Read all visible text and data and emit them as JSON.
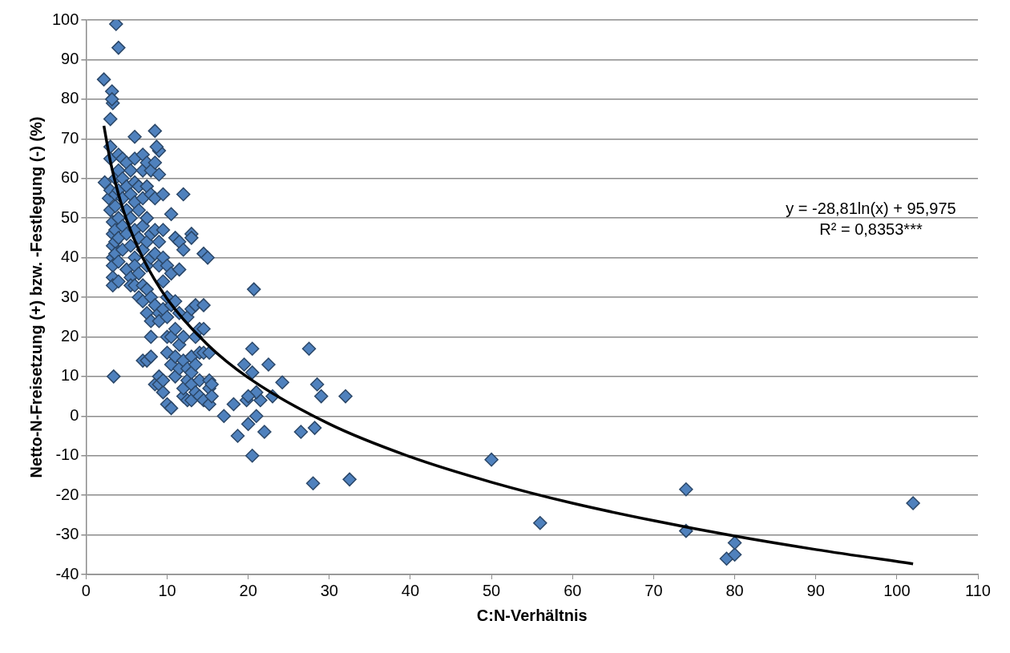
{
  "chart_data": {
    "type": "scatter",
    "xlabel": "C:N-Verhältnis",
    "ylabel": "Netto-N-Freisetzung (+) bzw. -Festlegung (-) (%)",
    "xlim": [
      0,
      110
    ],
    "xticks": [
      0,
      10,
      20,
      30,
      40,
      50,
      60,
      70,
      80,
      90,
      100,
      110
    ],
    "ylim": [
      -40,
      100
    ],
    "yticks": [
      -40,
      -30,
      -20,
      -10,
      0,
      10,
      20,
      30,
      40,
      50,
      60,
      70,
      80,
      90,
      100
    ],
    "grid": "y",
    "legend": false,
    "marker": "diamond",
    "annotations": [
      "y = -28,81ln(x) + 95,975",
      "R² = 0,8353***"
    ],
    "series": [
      {
        "color": "#4f81bd",
        "x": [
          3.7,
          4,
          2.2,
          3.2,
          3.3,
          3,
          3.2,
          8.5,
          6,
          9,
          8.7,
          12,
          10.5,
          13,
          14.5,
          15,
          20.7,
          3.4,
          27.5,
          28.5,
          29,
          32,
          28,
          32.5,
          28.2,
          26.5,
          20.5,
          18.7,
          50,
          56,
          74,
          74,
          79,
          80,
          80,
          102,
          20.5,
          22.5,
          24.2,
          19.5,
          17,
          18.2,
          22,
          20,
          21,
          21.5,
          23,
          20.5,
          21,
          19.8,
          20,
          2.3,
          2.8,
          3,
          3,
          3,
          3,
          3.3,
          3.3,
          3.3,
          3.3,
          3.3,
          3.3,
          3.3,
          3.6,
          3.6,
          3.6,
          3.6,
          3.6,
          3.6,
          4,
          4,
          4,
          4,
          4,
          4,
          4,
          4.5,
          4.5,
          4.5,
          4.5,
          4.5,
          5,
          5,
          5,
          5,
          5,
          5.5,
          5.5,
          5.5,
          5.5,
          5.5,
          5.5,
          6,
          6,
          6,
          6,
          6,
          6,
          6,
          6.5,
          6.5,
          6.5,
          6.5,
          6.5,
          7,
          7,
          7,
          7,
          7,
          7,
          7,
          7,
          7.5,
          7.5,
          7.5,
          7.5,
          7.5,
          7.5,
          7.5,
          7.5,
          8,
          8,
          8,
          8,
          8,
          8,
          8,
          8,
          8.5,
          8.5,
          8.5,
          8.5,
          8.5,
          8.5,
          9,
          9,
          9,
          9,
          9,
          9,
          9,
          9.5,
          9.5,
          9.5,
          9.5,
          9.5,
          9.5,
          9.5,
          10,
          10,
          10,
          10,
          10,
          10,
          10.5,
          10.5,
          10.5,
          10.5,
          10.5,
          11,
          11,
          11,
          11,
          11,
          11.5,
          11.5,
          11.5,
          11.5,
          11.5,
          12,
          12,
          12,
          12,
          12,
          12.5,
          12.5,
          12.5,
          12.5,
          13,
          13,
          13,
          13,
          13,
          13,
          13.5,
          13.5,
          13.5,
          13.5,
          14,
          14,
          14,
          14,
          14.5,
          14.5,
          14.5,
          14.5,
          15.2,
          15.2,
          15.2,
          15.2,
          15.5,
          15.5
        ],
        "values": [
          99,
          93,
          85,
          82,
          79,
          75,
          80,
          72,
          70.5,
          67,
          68,
          56,
          51,
          46,
          41,
          40,
          32,
          10,
          17,
          8,
          5,
          5,
          -17,
          -16,
          -3,
          -4,
          -10,
          -5,
          -11,
          -27,
          -18.5,
          -29,
          -36,
          -35,
          -32,
          -22,
          17,
          13,
          8.5,
          13,
          0,
          3,
          -4,
          -2,
          0,
          4,
          5,
          11,
          6,
          4,
          5,
          59,
          55,
          68,
          65,
          57,
          52,
          49,
          46,
          43,
          40,
          38,
          35,
          33,
          60,
          56,
          53,
          47,
          44,
          41,
          66,
          62,
          57,
          50,
          45,
          39,
          34,
          65,
          60,
          55,
          48,
          42,
          64,
          58,
          52,
          46,
          37,
          62,
          56,
          50,
          43,
          35,
          33,
          65,
          59,
          54,
          47,
          40,
          38,
          33,
          58,
          52,
          45,
          36,
          30,
          66,
          62,
          55,
          48,
          42,
          33,
          29,
          14,
          64,
          58,
          50,
          44,
          38,
          32,
          26,
          14,
          62,
          56,
          46,
          40,
          30,
          24,
          20,
          15,
          64,
          55,
          47,
          41,
          28,
          8,
          61,
          44,
          38,
          26,
          24,
          10,
          8,
          56,
          47,
          40,
          34,
          27,
          6,
          9,
          38,
          30,
          25,
          20,
          16,
          3,
          36,
          28,
          20,
          13,
          2,
          45,
          29,
          22,
          10,
          15,
          44,
          37,
          26,
          18,
          12,
          42,
          20,
          14,
          5,
          7,
          25,
          12,
          4,
          9,
          45,
          27,
          15,
          8,
          4,
          11,
          28,
          20,
          13,
          6,
          22,
          16,
          9,
          5,
          28,
          22,
          16,
          4,
          16,
          9,
          3,
          7,
          8,
          5
        ]
      },
      {
        "type": "line",
        "color": "#000000",
        "marker": "none",
        "x": [
          2.2,
          3,
          4,
          5,
          7,
          10,
          15,
          20,
          30,
          40,
          50,
          60,
          70,
          80,
          90,
          102
        ],
        "values": [
          73.3,
          64.3,
          56.0,
          49.6,
          39.9,
          29.6,
          18.0,
          9.7,
          -2.0,
          -10.3,
          -16.7,
          -22.0,
          -26.4,
          -30.3,
          -33.7,
          -37.3
        ]
      }
    ]
  }
}
